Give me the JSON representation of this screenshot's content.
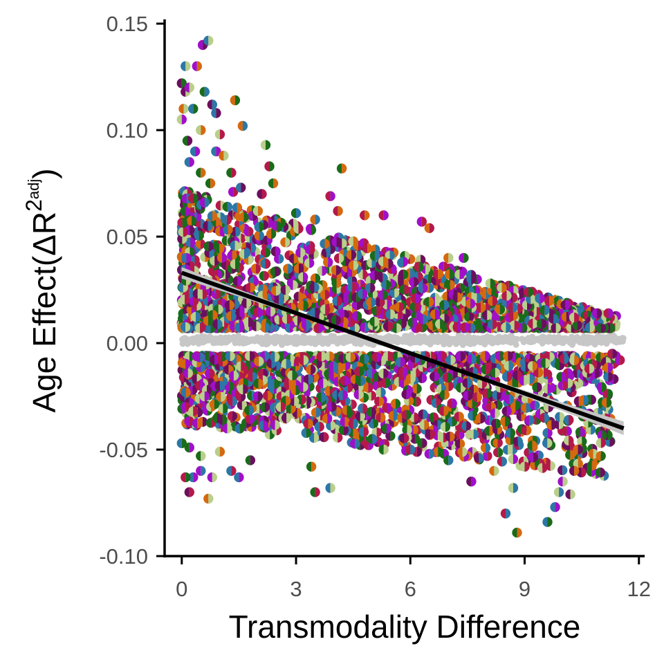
{
  "chart_data": {
    "type": "scatter",
    "title": "",
    "xlabel": "Transmodality Difference",
    "ylabel": {
      "prefix": "Age Effect(ΔR",
      "superscript": "2",
      "sub_superscript": "adj",
      "suffix": ")"
    },
    "xlim": [
      -0.45,
      12.15
    ],
    "ylim": [
      -0.1,
      0.152
    ],
    "xticks": [
      0,
      3,
      6,
      9,
      12
    ],
    "xtick_labels": [
      "0",
      "3",
      "6",
      "9",
      "12"
    ],
    "yticks": [
      -0.1,
      -0.05,
      0.0,
      0.05,
      0.1,
      0.15
    ],
    "ytick_labels": [
      "-0.10",
      "-0.05",
      "0.00",
      "0.05",
      "0.10",
      "0.15"
    ],
    "grid": false,
    "legend": "none",
    "palette": [
      "#2c77a6",
      "#1a6b1a",
      "#b5194a",
      "#a010c8",
      "#6b0f5e",
      "#d4690f",
      "#b9cf8a"
    ],
    "null_color": "#c7c7c7",
    "fit_line": {
      "x": [
        0.0,
        11.6
      ],
      "y": [
        0.033,
        -0.04
      ],
      "color": "#000000",
      "ci_color": "#c4c4c4"
    },
    "series": [
      {
        "role": "observed",
        "points": [
          [
            0.0,
            0.122
          ],
          [
            0.05,
            0.11
          ],
          [
            0.1,
            0.13
          ],
          [
            0.0,
            0.105
          ],
          [
            0.1,
            0.118
          ],
          [
            0.15,
            0.095
          ],
          [
            0.2,
            0.12
          ],
          [
            0.3,
            0.11
          ],
          [
            0.4,
            0.13
          ],
          [
            0.5,
            0.1
          ],
          [
            0.55,
            0.14
          ],
          [
            0.7,
            0.142
          ],
          [
            0.6,
            0.118
          ],
          [
            0.8,
            0.112
          ],
          [
            0.9,
            0.108
          ],
          [
            1.0,
            0.098
          ],
          [
            0.2,
            0.085
          ],
          [
            0.35,
            0.09
          ],
          [
            0.5,
            0.08
          ],
          [
            0.75,
            0.075
          ],
          [
            0.9,
            0.09
          ],
          [
            1.1,
            0.088
          ],
          [
            1.3,
            0.08
          ],
          [
            1.4,
            0.114
          ],
          [
            1.6,
            0.102
          ],
          [
            2.2,
            0.093
          ],
          [
            2.3,
            0.083
          ],
          [
            2.4,
            0.075
          ],
          [
            4.2,
            0.082
          ],
          [
            1.35,
            0.071
          ],
          [
            1.55,
            0.073
          ],
          [
            2.1,
            0.07
          ],
          [
            0.3,
            0.068
          ],
          [
            0.6,
            0.066
          ],
          [
            1.2,
            0.064
          ],
          [
            2.0,
            0.062
          ],
          [
            3.0,
            0.061
          ],
          [
            3.5,
            0.058
          ],
          [
            3.9,
            0.069
          ],
          [
            4.1,
            0.062
          ],
          [
            4.8,
            0.06
          ],
          [
            5.3,
            0.06
          ],
          [
            6.3,
            0.057
          ],
          [
            6.5,
            0.054
          ],
          [
            7.0,
            0.04
          ],
          [
            7.4,
            0.04
          ],
          [
            7.6,
            0.03
          ],
          [
            8.1,
            0.028
          ],
          [
            8.4,
            0.026
          ],
          [
            9.1,
            0.024
          ],
          [
            9.4,
            0.021
          ],
          [
            10.3,
            0.012
          ],
          [
            10.9,
            0.014
          ],
          [
            11.2,
            0.014
          ],
          [
            11.5,
            -0.008
          ],
          [
            11.3,
            -0.005
          ],
          [
            10.7,
            -0.012
          ],
          [
            10.4,
            -0.05
          ],
          [
            10.0,
            -0.065
          ],
          [
            10.2,
            -0.071
          ],
          [
            10.8,
            -0.052
          ],
          [
            9.8,
            -0.077
          ],
          [
            9.6,
            -0.084
          ],
          [
            8.8,
            -0.089
          ],
          [
            8.5,
            -0.08
          ],
          [
            8.2,
            -0.06
          ],
          [
            7.6,
            -0.065
          ],
          [
            7.0,
            -0.055
          ],
          [
            6.5,
            -0.052
          ],
          [
            5.3,
            -0.05
          ],
          [
            4.5,
            -0.038
          ],
          [
            3.9,
            -0.068
          ],
          [
            3.5,
            -0.07
          ],
          [
            3.4,
            -0.058
          ],
          [
            2.6,
            -0.03
          ],
          [
            2.0,
            -0.025
          ],
          [
            1.8,
            -0.055
          ],
          [
            1.5,
            -0.063
          ],
          [
            1.3,
            -0.06
          ],
          [
            1.0,
            -0.051
          ],
          [
            0.8,
            -0.063
          ],
          [
            0.7,
            -0.073
          ],
          [
            0.5,
            -0.06
          ],
          [
            0.3,
            -0.063
          ],
          [
            0.2,
            -0.07
          ],
          [
            0.1,
            -0.063
          ],
          [
            0.0,
            -0.047
          ],
          [
            0.2,
            -0.049
          ],
          [
            0.5,
            -0.053
          ],
          [
            0.1,
            -0.03
          ],
          [
            0.3,
            -0.032
          ],
          [
            0.6,
            -0.025
          ],
          [
            1.0,
            -0.02
          ],
          [
            5.0,
            -0.045
          ],
          [
            6.0,
            -0.05
          ],
          [
            7.8,
            -0.054
          ],
          [
            9.0,
            -0.058
          ],
          [
            9.2,
            -0.048
          ],
          [
            10.3,
            -0.06
          ],
          [
            11.0,
            -0.053
          ],
          [
            9.9,
            -0.07
          ],
          [
            8.7,
            -0.068
          ]
        ]
      }
    ]
  }
}
